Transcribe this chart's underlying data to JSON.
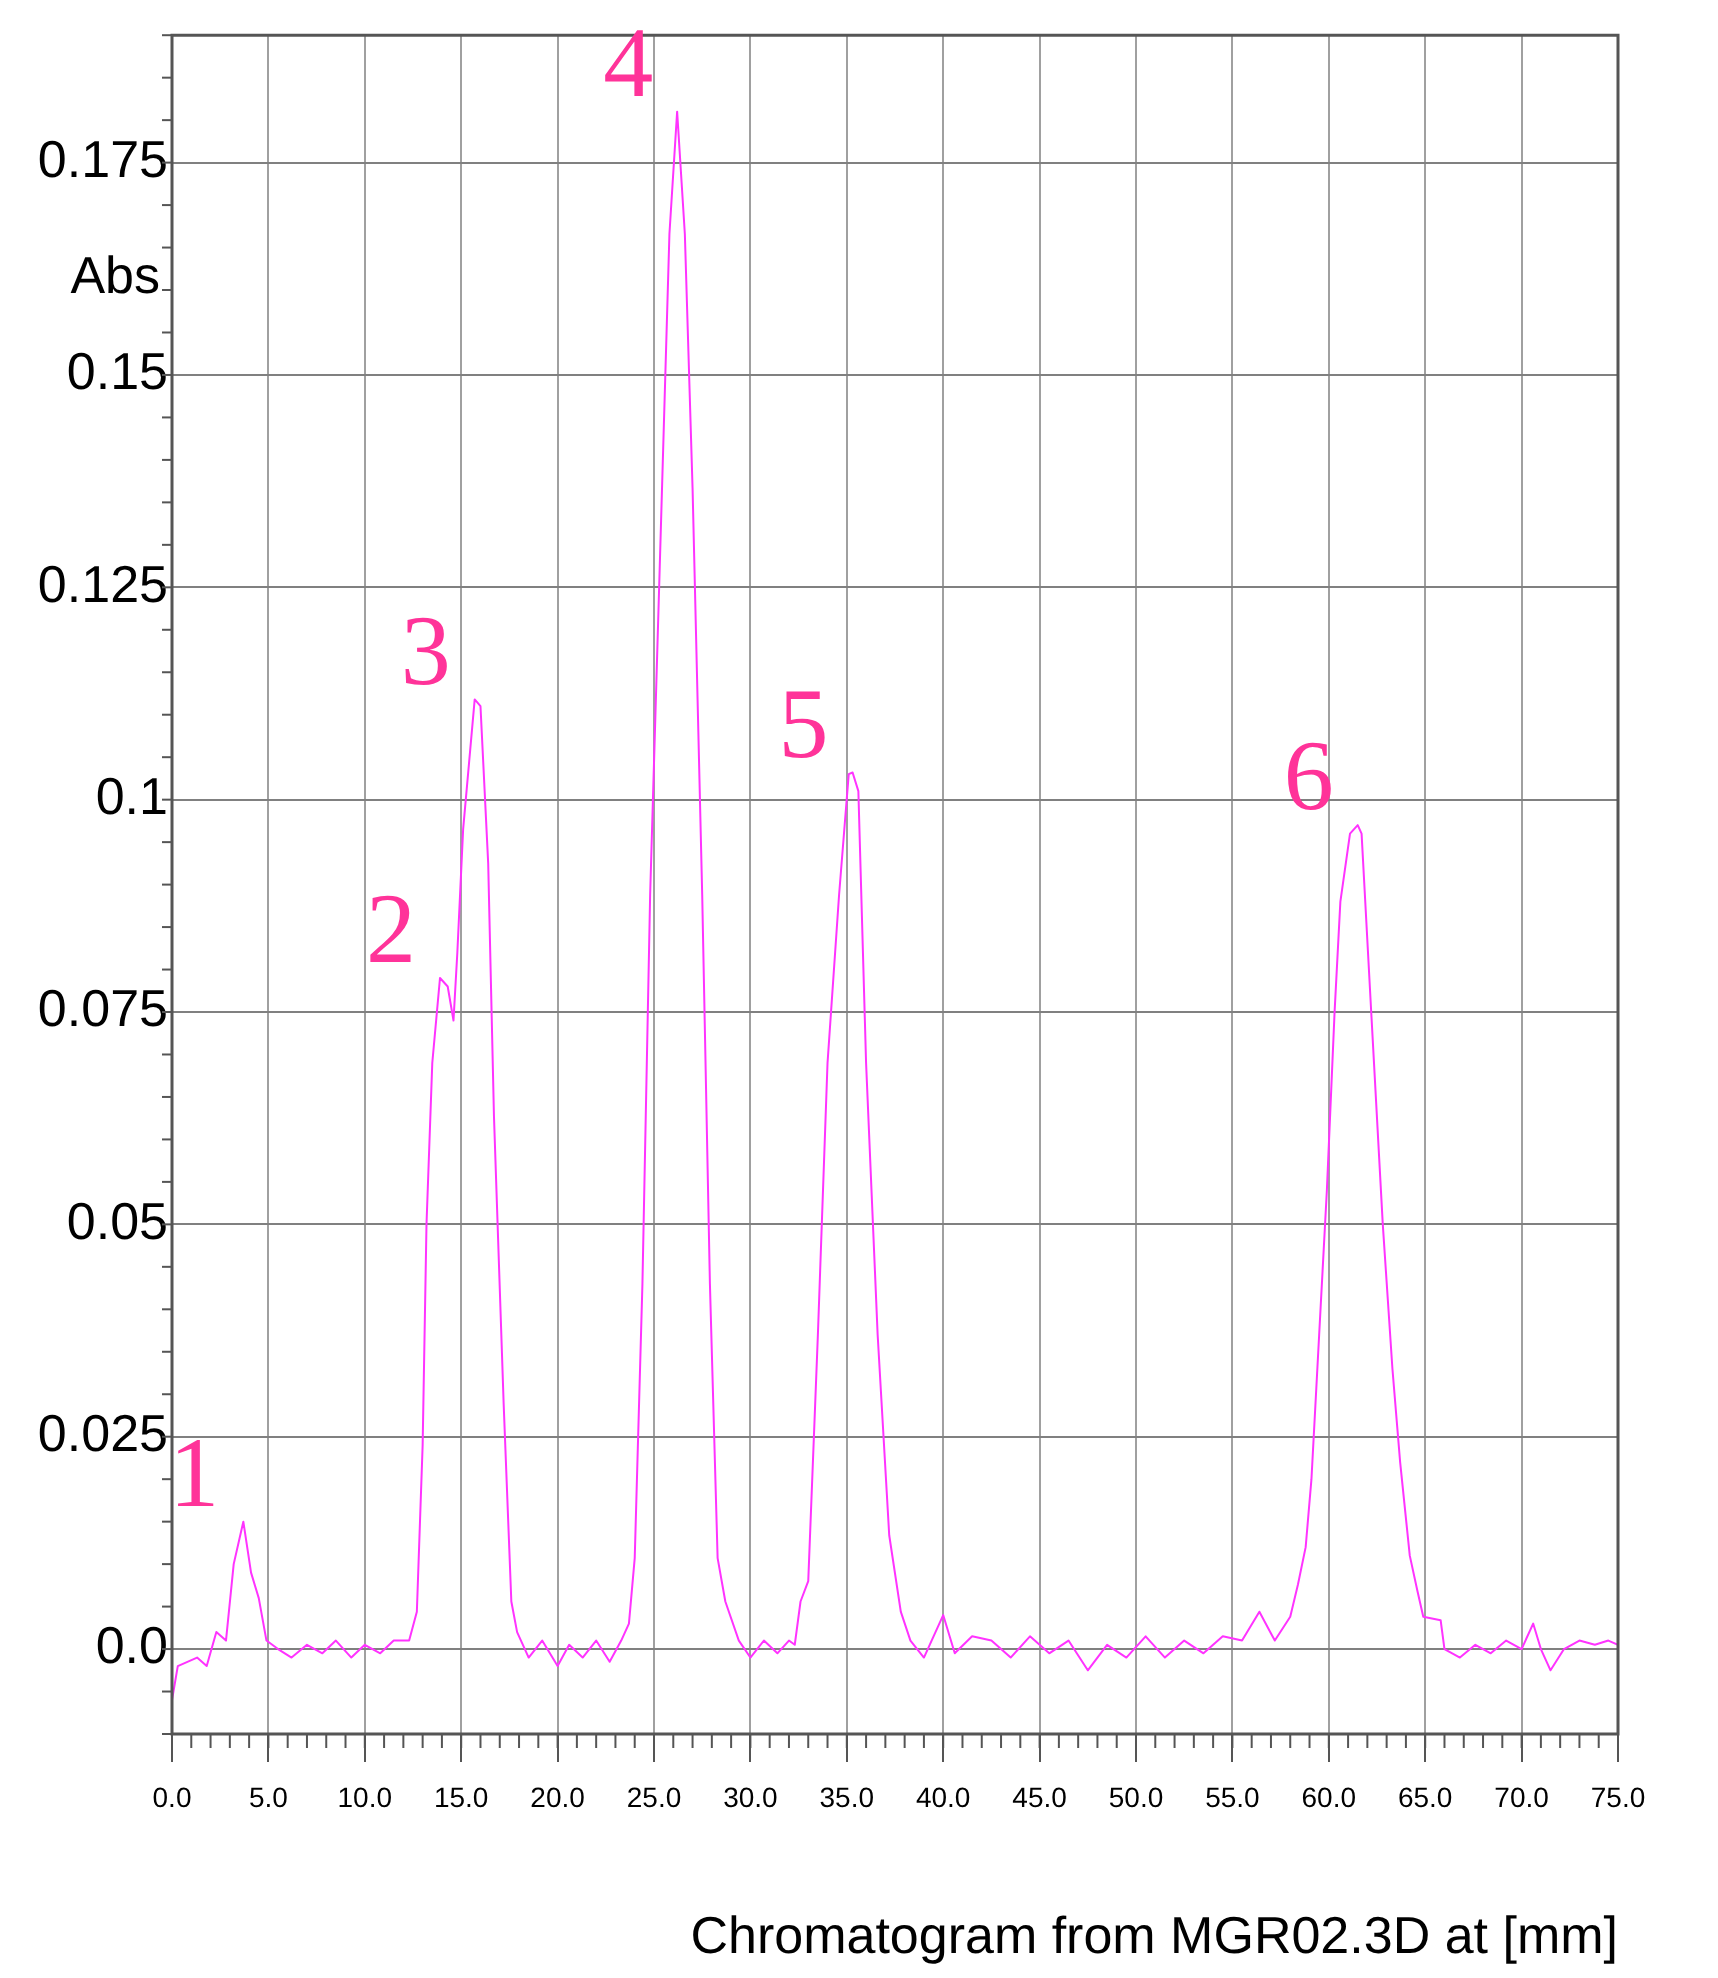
{
  "chart_data": {
    "type": "line",
    "xlabel": "Chromatogram from MGR02.3D at [mm]",
    "ylabel": "Abs",
    "xlim": [
      0,
      75
    ],
    "xticks": [
      {
        "value": 0,
        "label": "0.0"
      },
      {
        "value": 5,
        "label": "5.0"
      },
      {
        "value": 10,
        "label": "10.0"
      },
      {
        "value": 15,
        "label": "15.0"
      },
      {
        "value": 20,
        "label": "20.0"
      },
      {
        "value": 25,
        "label": "25.0"
      },
      {
        "value": 30,
        "label": "30.0"
      },
      {
        "value": 35,
        "label": "35.0"
      },
      {
        "value": 40,
        "label": "40.0"
      },
      {
        "value": 45,
        "label": "45.0"
      },
      {
        "value": 50,
        "label": "50.0"
      },
      {
        "value": 55,
        "label": "55.0"
      },
      {
        "value": 60,
        "label": "60.0"
      },
      {
        "value": 65,
        "label": "65.0"
      },
      {
        "value": 70,
        "label": "70.0"
      },
      {
        "value": 75,
        "label": "75.0"
      }
    ],
    "ylim": [
      -0.01,
      0.19
    ],
    "yticks": [
      {
        "value": 0,
        "label": "0.0"
      },
      0.025,
      0.05,
      0.075,
      0.1,
      0.125,
      0.15,
      0.175
    ],
    "grid": true,
    "marker": "none",
    "line_style": "solid",
    "series": [
      {
        "color": "#ff33ff",
        "x": [
          0,
          0.3,
          0.8,
          1.3,
          1.8,
          2.3,
          2.8,
          3.2,
          3.7,
          4.1,
          4.5,
          4.9,
          5.5,
          6.2,
          7,
          7.8,
          8.5,
          9.3,
          10,
          10.8,
          11.5,
          12.3,
          12.7,
          13,
          13.2,
          13.5,
          13.9,
          14.3,
          14.6,
          14.8,
          15.1,
          15.7,
          16,
          16.4,
          16.7,
          17.2,
          17.6,
          17.9,
          18.5,
          19.2,
          20,
          20.6,
          21.3,
          22,
          22.7,
          23.3,
          23.7,
          24,
          24.4,
          24.8,
          25.3,
          25.8,
          26.2,
          26.6,
          27,
          27.5,
          27.9,
          28.3,
          28.7,
          29.4,
          30,
          30.7,
          31.4,
          32,
          32.3,
          32.6,
          33,
          33.5,
          34,
          34.6,
          35.1,
          35.3,
          35.6,
          36,
          36.6,
          37.2,
          37.8,
          38.3,
          39,
          40,
          40.6,
          41.5,
          42.5,
          43.5,
          44.5,
          45.5,
          46.5,
          47.5,
          48.5,
          49.5,
          50.5,
          51.5,
          52.5,
          53.5,
          54.5,
          55.5,
          56.4,
          57.2,
          58,
          58.4,
          58.8,
          59.1,
          59.5,
          59.9,
          60.3,
          60.6,
          61.1,
          61.5,
          61.7,
          62.2,
          62.8,
          63.3,
          63.7,
          64.2,
          64.6,
          64.9,
          65.8,
          66,
          66.8,
          67.6,
          68.4,
          69.2,
          70,
          70.6,
          71,
          71.5,
          72.2,
          73,
          73.8,
          74.5,
          75
        ],
        "values": [
          -0.006,
          -0.002,
          -0.0015,
          -0.001,
          -0.002,
          0.002,
          0.001,
          0.01,
          0.015,
          0.009,
          0.006,
          0.001,
          0,
          -0.001,
          0.0005,
          -0.0005,
          0.001,
          -0.001,
          0.0005,
          -0.0005,
          0.001,
          0.001,
          0.0044,
          0.024,
          0.05,
          0.069,
          0.079,
          0.078,
          0.074,
          0.082,
          0.0965,
          0.1118,
          0.111,
          0.0925,
          0.0627,
          0.029,
          0.0056,
          0.002,
          -0.001,
          0.001,
          -0.002,
          0.0005,
          -0.001,
          0.001,
          -0.0015,
          0.001,
          0.003,
          0.0107,
          0.043,
          0.0888,
          0.1276,
          0.1666,
          0.181,
          0.1666,
          0.1367,
          0.0888,
          0.043,
          0.0107,
          0.0056,
          0.001,
          -0.001,
          0.001,
          -0.0005,
          0.001,
          0.0005,
          0.0056,
          0.008,
          0.037,
          0.069,
          0.0888,
          0.103,
          0.1032,
          0.101,
          0.069,
          0.037,
          0.0134,
          0.0044,
          0.001,
          -0.001,
          0.004,
          -0.0005,
          0.0015,
          0.001,
          -0.001,
          0.0015,
          -0.0005,
          0.001,
          -0.0025,
          0.0005,
          -0.001,
          0.0015,
          -0.001,
          0.001,
          -0.0005,
          0.0015,
          0.001,
          0.0044,
          0.001,
          0.0038,
          0.0076,
          0.012,
          0.02,
          0.037,
          0.054,
          0.075,
          0.088,
          0.096,
          0.097,
          0.096,
          0.075,
          0.05,
          0.033,
          0.022,
          0.011,
          0.0068,
          0.0038,
          0.0034,
          0,
          -0.001,
          0.0005,
          -0.0005,
          0.001,
          0,
          0.003,
          0,
          -0.0025,
          0,
          0.001,
          0.0005,
          0.001,
          0.0005
        ]
      }
    ],
    "annotations": [
      {
        "text": "1",
        "x": 3.7,
        "y": 0.015
      },
      {
        "text": "2",
        "x": 13.9,
        "y": 0.079
      },
      {
        "text": "3",
        "x": 15.7,
        "y": 0.1118
      },
      {
        "text": "4",
        "x": 26.2,
        "y": 0.181
      },
      {
        "text": "5",
        "x": 35.3,
        "y": 0.1032
      },
      {
        "text": "6",
        "x": 61.5,
        "y": 0.097
      }
    ]
  }
}
